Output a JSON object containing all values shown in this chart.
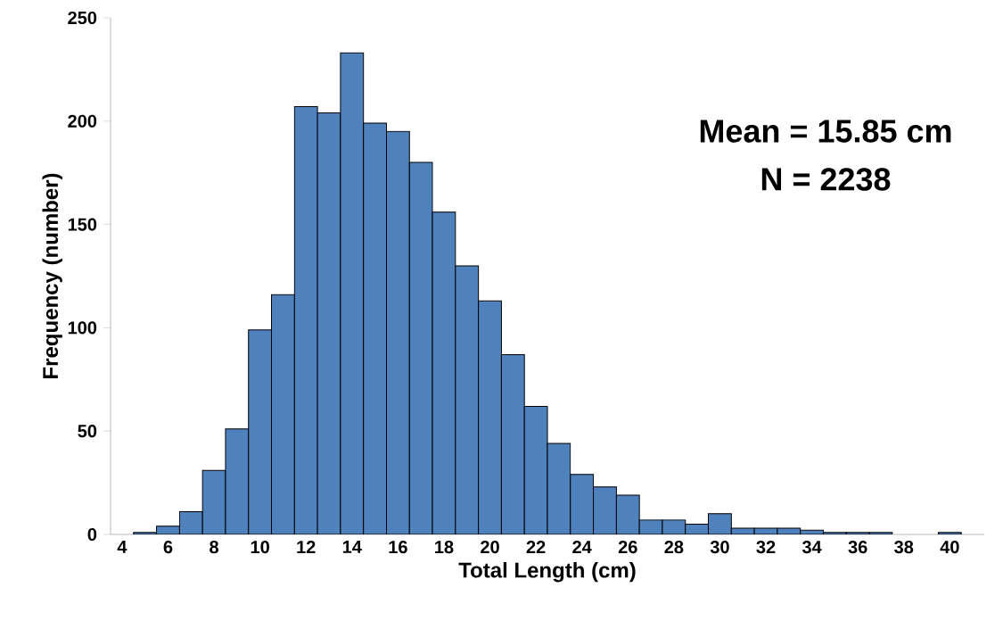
{
  "chart_data": {
    "type": "histogram",
    "xlabel": "Total Length (cm)",
    "ylabel": "Frequency (number)",
    "bins": [
      3.5,
      4.5,
      5.5,
      6.5,
      7.5,
      8.5,
      9.5,
      10.5,
      11.5,
      12.5,
      13.5,
      14.5,
      15.5,
      16.5,
      17.5,
      18.5,
      19.5,
      20.5,
      21.5,
      22.5,
      23.5,
      24.5,
      25.5,
      26.5,
      27.5,
      28.5,
      29.5,
      30.5,
      31.5,
      32.5,
      33.5,
      34.5,
      35.5,
      36.5,
      37.5,
      38.5,
      39.5,
      40.5,
      41.5
    ],
    "values": [
      0,
      1,
      4,
      11,
      31,
      51,
      99,
      116,
      207,
      204,
      233,
      199,
      195,
      180,
      156,
      130,
      113,
      87,
      62,
      44,
      29,
      23,
      19,
      7,
      7,
      5,
      10,
      3,
      3,
      3,
      2,
      1,
      1,
      1,
      0,
      0,
      1,
      0
    ],
    "color": "#4f81bd",
    "xlim": [
      3.5,
      41.5
    ],
    "xticks": [
      4,
      6,
      8,
      10,
      12,
      14,
      16,
      18,
      20,
      22,
      24,
      26,
      28,
      30,
      32,
      34,
      36,
      38,
      40
    ],
    "ylim": [
      0,
      250
    ],
    "yticks": [
      0,
      50,
      100,
      150,
      200,
      250
    ],
    "annotations": [
      "Mean = 15.85 cm",
      "N = 2238"
    ]
  }
}
